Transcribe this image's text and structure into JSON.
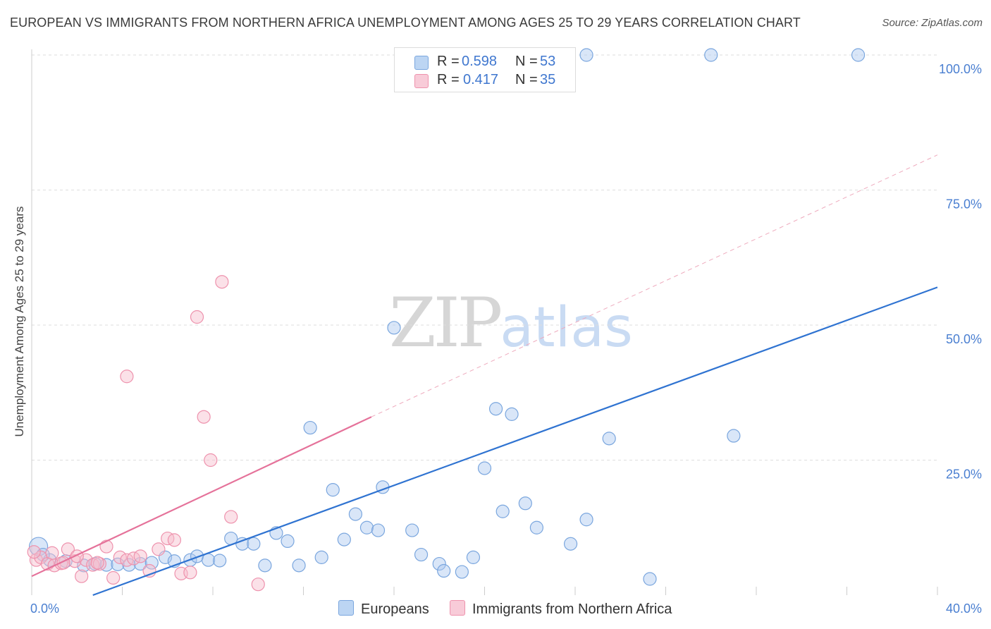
{
  "title": "EUROPEAN VS IMMIGRANTS FROM NORTHERN AFRICA UNEMPLOYMENT AMONG AGES 25 TO 29 YEARS CORRELATION CHART",
  "source": "Source: ZipAtlas.com",
  "watermark": {
    "zip": "ZIP",
    "atlas": "atlas"
  },
  "legend": {
    "rows": [
      {
        "r_label": "R =",
        "r_value": "0.598",
        "n_label": "N =",
        "n_value": "53",
        "color": "#a9c8ef",
        "stroke": "#7aa6de"
      },
      {
        "r_label": "R =",
        "r_value": "0.417",
        "n_label": "N =",
        "n_value": "35",
        "color": "#f6bccd",
        "stroke": "#ee92ad"
      }
    ]
  },
  "bottom_legend": [
    {
      "label": "Europeans",
      "color": "#bcd5f3",
      "stroke": "#7aa6de"
    },
    {
      "label": "Immigrants from Northern Africa",
      "color": "#f8cbd8",
      "stroke": "#ee92ad"
    }
  ],
  "chart_data": {
    "type": "scatter",
    "title": "EUROPEAN VS IMMIGRANTS FROM NORTHERN AFRICA UNEMPLOYMENT AMONG AGES 25 TO 29 YEARS CORRELATION CHART",
    "xlabel": "",
    "ylabel": "Unemployment Among Ages 25 to 29 years",
    "xlim": [
      0,
      40
    ],
    "ylim": [
      0,
      100
    ],
    "x_tick_labels": [
      "0.0%",
      "40.0%"
    ],
    "y_ticks": [
      25,
      50,
      75,
      100
    ],
    "y_tick_labels": [
      "25.0%",
      "50.0%",
      "75.0%",
      "100.0%"
    ],
    "grid": true,
    "legend_position": "top-center",
    "series": [
      {
        "name": "Europeans",
        "color": "#7aa6de",
        "trend": {
          "x0": 2.7,
          "y0": 0,
          "x1": 40,
          "y1": 57
        },
        "points": [
          [
            0.3,
            9.0
          ],
          [
            0.8,
            6.5
          ],
          [
            1.5,
            6.3
          ],
          [
            2.3,
            5.5
          ],
          [
            2.8,
            5.8
          ],
          [
            3.3,
            5.6
          ],
          [
            3.8,
            5.7
          ],
          [
            4.3,
            5.6
          ],
          [
            4.8,
            5.8
          ],
          [
            5.3,
            6.0
          ],
          [
            5.9,
            7.0
          ],
          [
            6.3,
            6.3
          ],
          [
            7.0,
            6.5
          ],
          [
            7.3,
            7.2
          ],
          [
            7.8,
            6.5
          ],
          [
            8.3,
            6.4
          ],
          [
            8.8,
            10.5
          ],
          [
            9.3,
            9.5
          ],
          [
            9.8,
            9.5
          ],
          [
            10.3,
            5.5
          ],
          [
            10.8,
            11.5
          ],
          [
            11.3,
            10.0
          ],
          [
            11.8,
            5.5
          ],
          [
            12.3,
            31.0
          ],
          [
            12.8,
            7.0
          ],
          [
            13.3,
            19.5
          ],
          [
            13.8,
            10.3
          ],
          [
            14.3,
            15.0
          ],
          [
            14.8,
            12.5
          ],
          [
            15.5,
            20.0
          ],
          [
            15.3,
            12.0
          ],
          [
            16.0,
            49.5
          ],
          [
            16.8,
            12.0
          ],
          [
            17.2,
            7.5
          ],
          [
            18.0,
            5.8
          ],
          [
            18.2,
            4.5
          ],
          [
            19.0,
            4.3
          ],
          [
            19.5,
            7.0
          ],
          [
            20.0,
            23.5
          ],
          [
            20.5,
            34.5
          ],
          [
            20.8,
            15.5
          ],
          [
            21.2,
            33.5
          ],
          [
            21.8,
            17.0
          ],
          [
            22.3,
            12.5
          ],
          [
            23.8,
            9.5
          ],
          [
            24.5,
            14.0
          ],
          [
            24.5,
            100.0
          ],
          [
            25.5,
            29.0
          ],
          [
            27.3,
            3.0
          ],
          [
            30.0,
            100.0
          ],
          [
            31.0,
            29.5
          ],
          [
            36.5,
            100.0
          ],
          [
            0.5,
            7.5
          ]
        ]
      },
      {
        "name": "Immigrants from Northern Africa",
        "color": "#ee92ad",
        "trend": {
          "x0": 0,
          "y0": 3.5,
          "x1": 15.0,
          "y1": 33.0
        },
        "trend_extension": {
          "x0": 15.0,
          "y0": 33.0,
          "x1": 40,
          "y1": 81.5
        },
        "points": [
          [
            0.2,
            6.5
          ],
          [
            0.4,
            7.0
          ],
          [
            0.7,
            5.8
          ],
          [
            1.0,
            5.5
          ],
          [
            1.3,
            5.9
          ],
          [
            1.6,
            8.5
          ],
          [
            1.9,
            6.3
          ],
          [
            2.2,
            3.5
          ],
          [
            2.4,
            6.5
          ],
          [
            2.7,
            5.6
          ],
          [
            3.0,
            5.8
          ],
          [
            3.3,
            9.0
          ],
          [
            3.6,
            3.2
          ],
          [
            3.9,
            7.0
          ],
          [
            4.2,
            6.5
          ],
          [
            4.5,
            6.8
          ],
          [
            4.8,
            7.2
          ],
          [
            5.2,
            4.5
          ],
          [
            5.6,
            8.5
          ],
          [
            6.0,
            10.5
          ],
          [
            6.3,
            10.2
          ],
          [
            6.6,
            4.0
          ],
          [
            7.0,
            4.2
          ],
          [
            7.3,
            51.5
          ],
          [
            7.6,
            33.0
          ],
          [
            7.9,
            25.0
          ],
          [
            8.4,
            58.0
          ],
          [
            8.8,
            14.5
          ],
          [
            4.2,
            40.5
          ],
          [
            10.0,
            2.0
          ],
          [
            0.9,
            7.8
          ],
          [
            1.4,
            6.0
          ],
          [
            2.0,
            7.2
          ],
          [
            2.9,
            6.0
          ],
          [
            0.1,
            8.0
          ]
        ]
      }
    ]
  }
}
